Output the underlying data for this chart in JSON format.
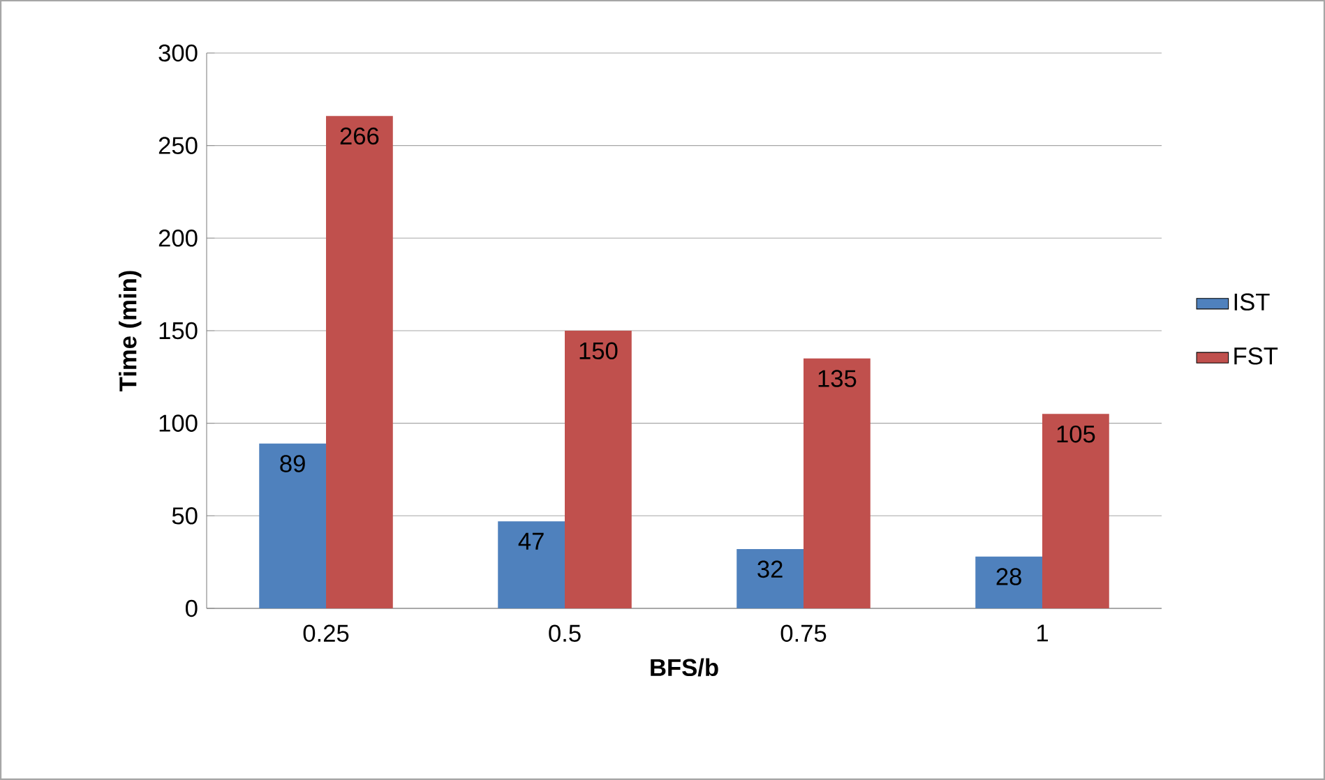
{
  "chart_data": {
    "type": "bar",
    "xlabel": "BFS/b",
    "ylabel": "Time (min)",
    "categories": [
      "0.25",
      "0.5",
      "0.75",
      "1"
    ],
    "series": [
      {
        "name": "IST",
        "color": "#4f81bd",
        "values": [
          89,
          47,
          32,
          28
        ]
      },
      {
        "name": "FST",
        "color": "#c0504d",
        "values": [
          266,
          150,
          135,
          105
        ]
      }
    ],
    "ylim": [
      0,
      300
    ],
    "yticks": [
      0,
      50,
      100,
      150,
      200,
      250,
      300
    ],
    "grid": "y",
    "legend": "right",
    "data_labels": true
  }
}
